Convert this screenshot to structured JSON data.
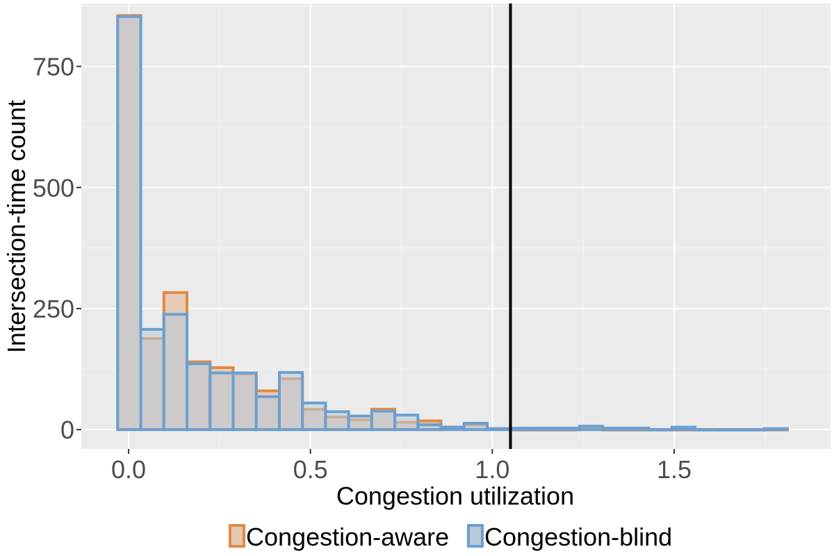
{
  "chart_data": {
    "type": "bar",
    "title": "",
    "xlabel": "Congestion utilization",
    "ylabel": "Intersection-time count",
    "xlim": [
      -0.13,
      1.93
    ],
    "ylim": [
      -40,
      880
    ],
    "x_ticks": [
      {
        "value": 0.0,
        "label": "0.0"
      },
      {
        "value": 0.5,
        "label": "0.5"
      },
      {
        "value": 1.0,
        "label": "1.0"
      },
      {
        "value": 1.5,
        "label": "1.5"
      }
    ],
    "y_ticks": [
      {
        "value": 0,
        "label": "0"
      },
      {
        "value": 250,
        "label": "250"
      },
      {
        "value": 500,
        "label": "500"
      },
      {
        "value": 750,
        "label": "750"
      }
    ],
    "bin_width": 0.0635,
    "bin_start": -0.03,
    "grid": true,
    "legend_position": "bottom",
    "vline": {
      "x": 1.05
    },
    "series": [
      {
        "name": "Congestion-aware",
        "border": "#e08a45",
        "fill": "#e6c8b2",
        "values": [
          855,
          188,
          283,
          140,
          128,
          115,
          80,
          105,
          42,
          26,
          20,
          42,
          15,
          18,
          5,
          10,
          2,
          0,
          0,
          0,
          2,
          0,
          0,
          0,
          0,
          0,
          0,
          0,
          0
        ]
      },
      {
        "name": "Congestion-blind",
        "border": "#6b9fd0",
        "fill": "#b9cadb",
        "values": [
          853,
          207,
          238,
          136,
          117,
          117,
          68,
          118,
          55,
          37,
          28,
          38,
          30,
          10,
          5,
          13,
          2,
          3,
          3,
          3,
          7,
          3,
          3,
          0,
          5,
          0,
          0,
          0,
          2
        ]
      }
    ]
  }
}
